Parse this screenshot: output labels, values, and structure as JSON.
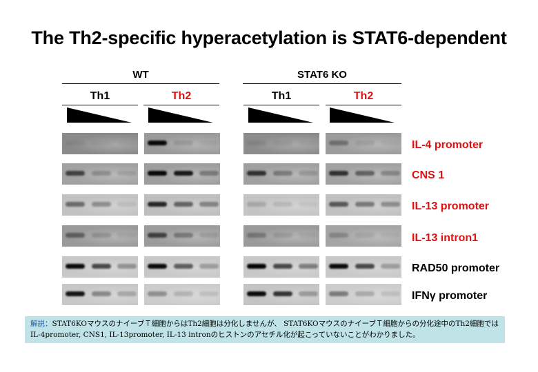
{
  "title": "The Th2-specific hyperacetylation is STAT6-dependent",
  "groups": [
    {
      "label": "WT",
      "cells": [
        {
          "label": "Th1",
          "color": "#000000"
        },
        {
          "label": "Th2",
          "color": "#dd1111"
        }
      ]
    },
    {
      "label": "STAT6 KO",
      "cells": [
        {
          "label": "Th1",
          "color": "#000000"
        },
        {
          "label": "Th2",
          "color": "#dd1111"
        }
      ]
    }
  ],
  "rows": [
    {
      "label": "IL-4 promoter",
      "color": "#dd1111",
      "bands": [
        [
          0.05,
          0.03,
          0.02
        ],
        [
          0.95,
          0.1,
          0.05
        ],
        [
          0.08,
          0.05,
          0.03
        ],
        [
          0.3,
          0.08,
          0.04
        ]
      ],
      "background": [
        "#8a8a8a",
        "#9a9a9a",
        "#8c8c8c",
        "#9c9c9c"
      ]
    },
    {
      "label": "CNS 1",
      "color": "#dd1111",
      "bands": [
        [
          0.6,
          0.2,
          0.1
        ],
        [
          0.95,
          0.85,
          0.3
        ],
        [
          0.7,
          0.3,
          0.15
        ],
        [
          0.7,
          0.45,
          0.25
        ]
      ],
      "background": [
        "#a2a2a2",
        "#9e9e9e",
        "#a0a0a0",
        "#a2a2a2"
      ]
    },
    {
      "label": "IL-13 promoter",
      "color": "#dd1111",
      "bands": [
        [
          0.45,
          0.3,
          0.08
        ],
        [
          0.8,
          0.5,
          0.35
        ],
        [
          0.15,
          0.1,
          0.05
        ],
        [
          0.55,
          0.4,
          0.3
        ]
      ],
      "background": [
        "#c2c2c2",
        "#bebebe",
        "#c4c4c4",
        "#c0c0c0"
      ]
    },
    {
      "label": "IL-13 intron1",
      "color": "#dd1111",
      "bands": [
        [
          0.4,
          0.15,
          0.05
        ],
        [
          0.6,
          0.3,
          0.1
        ],
        [
          0.25,
          0.1,
          0.05
        ],
        [
          0.2,
          0.08,
          0.04
        ]
      ],
      "background": [
        "#9a9a9a",
        "#9c9c9c",
        "#9a9a9a",
        "#a4a4a4"
      ]
    },
    {
      "label": "RAD50 promoter",
      "color": "#000000",
      "bands": [
        [
          0.95,
          0.65,
          0.3
        ],
        [
          0.95,
          0.55,
          0.25
        ],
        [
          0.98,
          0.65,
          0.4
        ],
        [
          0.95,
          0.65,
          0.25
        ]
      ],
      "background": [
        "#c8c8c8",
        "#c8c8c8",
        "#c8c8c8",
        "#c8c8c8"
      ]
    },
    {
      "label": "IFNγ promoter",
      "color": "#000000",
      "bands": [
        [
          0.9,
          0.35,
          0.2
        ],
        [
          0.3,
          0.15,
          0.1
        ],
        [
          0.95,
          0.75,
          0.25
        ],
        [
          0.4,
          0.2,
          0.1
        ]
      ],
      "background": [
        "#c8c8c8",
        "#cccccc",
        "#c4c4c4",
        "#cccccc"
      ]
    }
  ],
  "caption": {
    "heading": "解説：",
    "text": "STAT6KOマウスのナイーブＴ細胞からはTh2細胞は分化しませんが、 STAT6KOマウスのナイーブＴ細胞からの分化途中のTh2細胞ではIL-4promoter, CNS1, IL-13promoter, IL-13 intronのヒストンのアセチル化が起こっていないことがわかりました。"
  }
}
